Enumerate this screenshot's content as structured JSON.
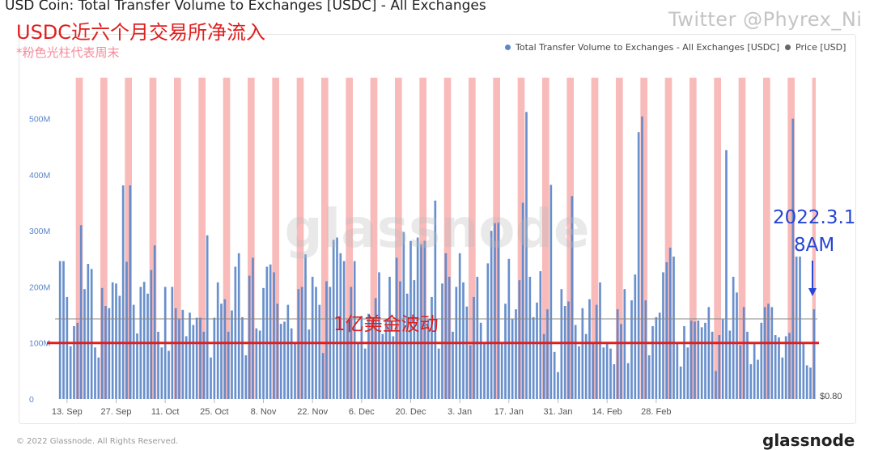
{
  "header": {
    "title": "USD Coin: Total Transfer Volume to Exchanges [USDC] - All Exchanges",
    "annotation_cn": "USDC近六个月交易所净流入",
    "note_cn": "*粉色光柱代表周末",
    "watermark": "Twitter @Phyrex_Ni"
  },
  "legend": {
    "volume": "Total Transfer Volume to Exchanges - All Exchanges [USDC]",
    "price": "Price [USD]"
  },
  "colors": {
    "bar": "#5b87c9",
    "weekend": "#f7a6a6",
    "threshold_line": "#e01e1e",
    "price_line": "#888888",
    "annotation": "#2546d6"
  },
  "chart_data": {
    "type": "bar",
    "title": "USD Coin: Total Transfer Volume to Exchanges [USDC] - All Exchanges",
    "ylim": [
      0,
      560000000
    ],
    "ytick_labels": [
      "0",
      "100M",
      "200M",
      "300M",
      "400M",
      "500M"
    ],
    "ytick_values": [
      0,
      100000000,
      200000000,
      300000000,
      400000000,
      500000000
    ],
    "xtick_labels": [
      "13. Sep",
      "27. Sep",
      "11. Oct",
      "25. Oct",
      "8. Nov",
      "22. Nov",
      "6. Dec",
      "20. Dec",
      "3. Jan",
      "17. Jan",
      "31. Jan",
      "14. Feb",
      "28. Feb"
    ],
    "right_axis_label": "$0.80",
    "grid": false,
    "legend_placement": "top-right",
    "threshold": {
      "value": 100000000,
      "label": "1亿美金波动"
    },
    "price_level": 143000000,
    "callout": {
      "line1": "2022.3.1",
      "line2": "8AM"
    },
    "watermark_text": "glassnode",
    "series": [
      {
        "name": "Total Transfer Volume to Exchanges - All Exchanges [USDC]",
        "values": [
          246000000,
          246000000,
          182000000,
          94000000,
          130000000,
          136000000,
          310000000,
          196000000,
          241000000,
          232000000,
          92000000,
          74000000,
          198000000,
          166000000,
          162000000,
          208000000,
          206000000,
          184000000,
          381000000,
          245000000,
          381000000,
          168000000,
          117000000,
          200000000,
          209000000,
          188000000,
          230000000,
          274000000,
          120000000,
          92000000,
          200000000,
          86000000,
          200000000,
          162000000,
          142000000,
          159000000,
          112000000,
          154000000,
          132000000,
          145000000,
          145000000,
          120000000,
          292000000,
          74000000,
          145000000,
          208000000,
          170000000,
          178000000,
          120000000,
          158000000,
          236000000,
          260000000,
          146000000,
          78000000,
          220000000,
          252000000,
          126000000,
          122000000,
          198000000,
          236000000,
          240000000,
          226000000,
          170000000,
          134000000,
          138000000,
          168000000,
          126000000,
          100000000,
          196000000,
          200000000,
          258000000,
          124000000,
          218000000,
          200000000,
          168000000,
          82000000,
          210000000,
          200000000,
          284000000,
          288000000,
          260000000,
          246000000,
          140000000,
          200000000,
          246000000,
          100000000,
          148000000,
          90000000,
          152000000,
          140000000,
          180000000,
          226000000,
          116000000,
          140000000,
          218000000,
          112000000,
          252000000,
          210000000,
          298000000,
          188000000,
          282000000,
          212000000,
          288000000,
          276000000,
          282000000,
          142000000,
          182000000,
          354000000,
          90000000,
          206000000,
          260000000,
          218000000,
          120000000,
          200000000,
          260000000,
          208000000,
          165000000,
          96000000,
          182000000,
          218000000,
          136000000,
          100000000,
          242000000,
          300000000,
          314000000,
          315000000,
          100000000,
          170000000,
          250000000,
          142000000,
          160000000,
          212000000,
          350000000,
          512000000,
          218000000,
          146000000,
          172000000,
          228000000,
          116000000,
          160000000,
          382000000,
          84000000,
          48000000,
          196000000,
          166000000,
          174000000,
          362000000,
          132000000,
          94000000,
          162000000,
          116000000,
          178000000,
          100000000,
          168000000,
          208000000,
          92000000,
          100000000,
          90000000,
          62000000,
          160000000,
          134000000,
          196000000,
          64000000,
          176000000,
          222000000,
          476000000,
          504000000,
          176000000,
          78000000,
          130000000,
          146000000,
          154000000,
          226000000,
          244000000,
          270000000,
          254000000,
          100000000,
          58000000,
          130000000,
          92000000,
          140000000,
          138000000,
          140000000,
          128000000,
          136000000,
          164000000,
          120000000,
          50000000,
          114000000,
          142000000,
          444000000,
          122000000,
          218000000,
          190000000,
          96000000,
          164000000,
          120000000,
          62000000,
          100000000,
          70000000,
          136000000,
          164000000,
          170000000,
          164000000,
          114000000,
          110000000,
          74000000,
          112000000,
          118000000,
          500000000,
          254000000,
          254000000,
          100000000,
          60000000,
          56000000,
          160000000
        ]
      }
    ]
  }
}
